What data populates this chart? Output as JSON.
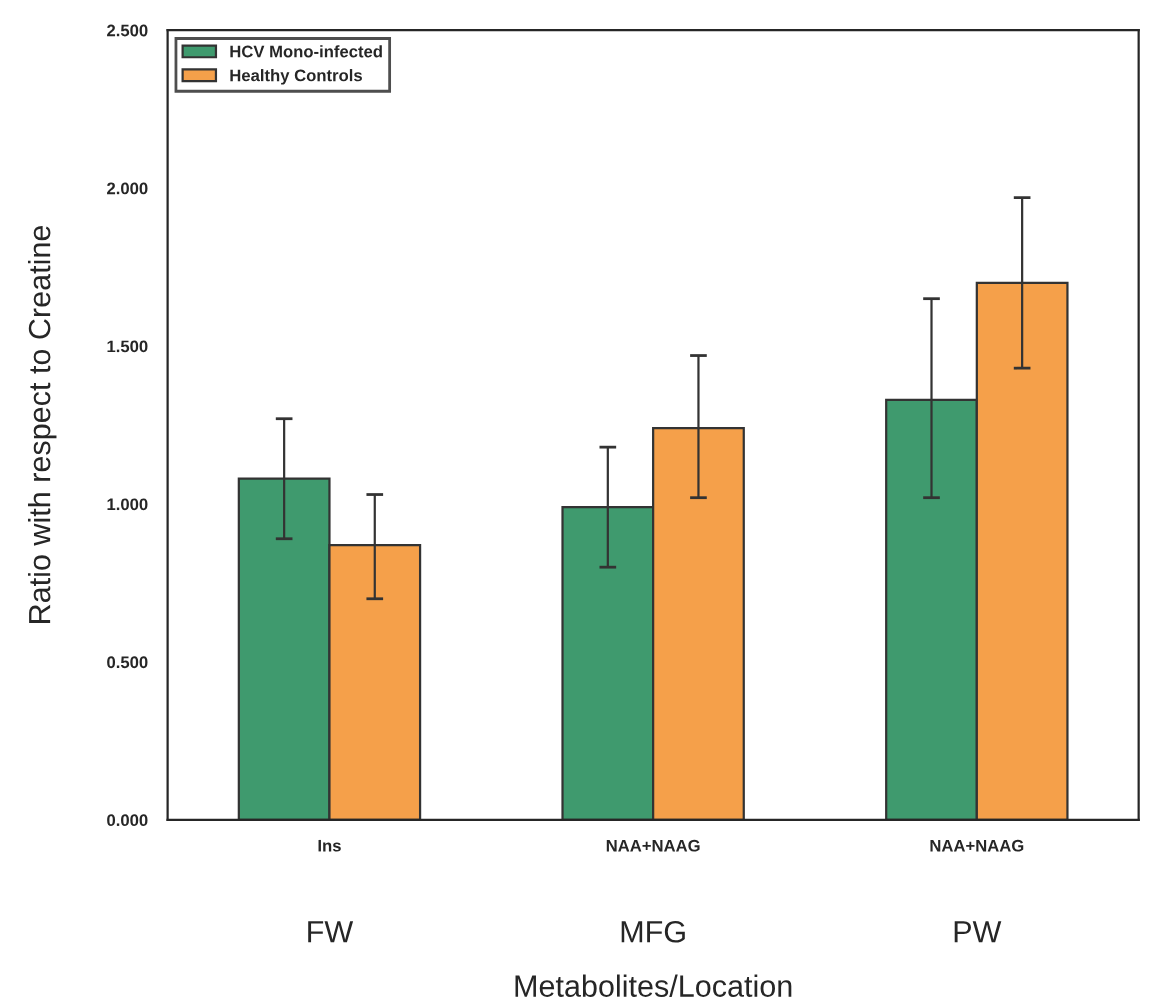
{
  "chart_data": {
    "type": "bar",
    "categories": [
      "Ins",
      "NAA+NAAG",
      "NAA+NAAG"
    ],
    "xlabel": "Metabolites/Location",
    "ylabel": "Ratio with respect to Creatine",
    "series": [
      {
        "name": "HCV Mono-infected",
        "color": "#3f9a6e",
        "values": [
          1.08,
          0.99,
          1.33
        ],
        "errors": [
          [
            0.89,
            1.27
          ],
          [
            0.8,
            1.18
          ],
          [
            1.02,
            1.65
          ]
        ]
      },
      {
        "name": "Healthy Controls",
        "color": "#f5a04a",
        "values": [
          0.87,
          1.24,
          1.7
        ],
        "errors": [
          [
            0.7,
            1.03
          ],
          [
            1.02,
            1.47
          ],
          [
            1.43,
            1.97
          ]
        ]
      }
    ],
    "annotations": [
      "FW",
      "MFG",
      "PW"
    ],
    "ylim": [
      0,
      2.5
    ],
    "yticks": [
      {
        "value": 0,
        "label": "0.000"
      },
      {
        "value": 0.5,
        "label": "0.500"
      },
      {
        "value": 1,
        "label": "1.000"
      },
      {
        "value": 1.5,
        "label": "1.500"
      },
      {
        "value": 2,
        "label": "2.000"
      },
      {
        "value": 2.5,
        "label": "2.500"
      }
    ],
    "legend": "top left",
    "grid": false
  }
}
